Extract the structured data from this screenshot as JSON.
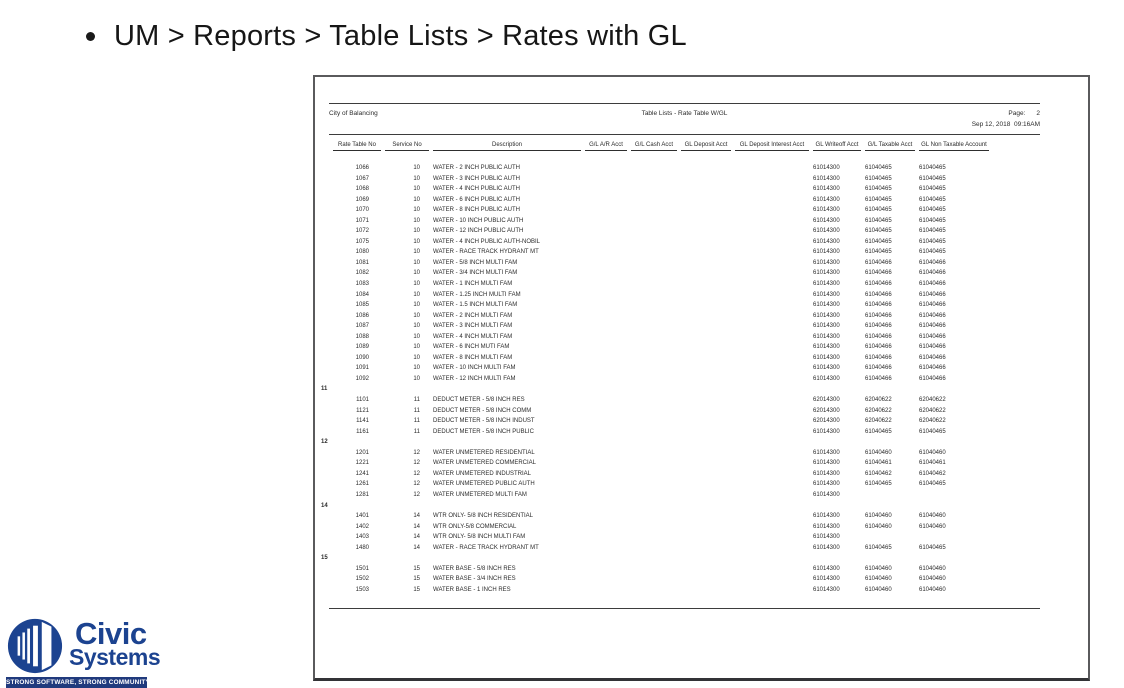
{
  "slide": {
    "title": "UM > Reports > Table Lists > Rates with GL"
  },
  "report": {
    "organization": "City of Balancing",
    "title": "Table Lists - Rate Table W/GL",
    "page_label": "Page:",
    "page_number": "2",
    "datetime": "Sep 12, 2018  09:16AM",
    "columns": [
      "Rate Table No",
      "Service No",
      "Description",
      "G/L A/R Acct",
      "G/L Cash Acct",
      "GL Deposit Acct",
      "GL Deposit Interest Acct",
      "GL Writeoff Acct",
      "G/L Taxable Acct",
      "GL Non Taxable Account"
    ],
    "groups": [
      {
        "label": "",
        "rows": [
          [
            "1066",
            "10",
            "WATER - 2 INCH PUBLIC AUTH",
            "",
            "",
            "",
            "",
            "61014300",
            "61040465",
            "61040465"
          ],
          [
            "1067",
            "10",
            "WATER - 3 INCH PUBLIC AUTH",
            "",
            "",
            "",
            "",
            "61014300",
            "61040465",
            "61040465"
          ],
          [
            "1068",
            "10",
            "WATER - 4 INCH PUBLIC AUTH",
            "",
            "",
            "",
            "",
            "61014300",
            "61040465",
            "61040465"
          ],
          [
            "1069",
            "10",
            "WATER - 6 INCH PUBLIC AUTH",
            "",
            "",
            "",
            "",
            "61014300",
            "61040465",
            "61040465"
          ],
          [
            "1070",
            "10",
            "WATER - 8 INCH PUBLIC AUTH",
            "",
            "",
            "",
            "",
            "61014300",
            "61040465",
            "61040465"
          ],
          [
            "1071",
            "10",
            "WATER - 10 INCH PUBLIC AUTH",
            "",
            "",
            "",
            "",
            "61014300",
            "61040465",
            "61040465"
          ],
          [
            "1072",
            "10",
            "WATER - 12 INCH PUBLIC AUTH",
            "",
            "",
            "",
            "",
            "61014300",
            "61040465",
            "61040465"
          ],
          [
            "1075",
            "10",
            "WATER - 4 INCH PUBLIC AUTH-NOBIL",
            "",
            "",
            "",
            "",
            "61014300",
            "61040465",
            "61040465"
          ],
          [
            "1080",
            "10",
            "WATER - RACE TRACK HYDRANT MT",
            "",
            "",
            "",
            "",
            "61014300",
            "61040465",
            "61040465"
          ],
          [
            "1081",
            "10",
            "WATER - 5/8 INCH MULTI FAM",
            "",
            "",
            "",
            "",
            "61014300",
            "61040466",
            "61040466"
          ],
          [
            "1082",
            "10",
            "WATER - 3/4 INCH MULTI FAM",
            "",
            "",
            "",
            "",
            "61014300",
            "61040466",
            "61040466"
          ],
          [
            "1083",
            "10",
            "WATER - 1 INCH MULTI FAM",
            "",
            "",
            "",
            "",
            "61014300",
            "61040466",
            "61040466"
          ],
          [
            "1084",
            "10",
            "WATER - 1.25 INCH MULTI FAM",
            "",
            "",
            "",
            "",
            "61014300",
            "61040466",
            "61040466"
          ],
          [
            "1085",
            "10",
            "WATER - 1.5 INCH MULTI FAM",
            "",
            "",
            "",
            "",
            "61014300",
            "61040466",
            "61040466"
          ],
          [
            "1086",
            "10",
            "WATER - 2 INCH MULTI FAM",
            "",
            "",
            "",
            "",
            "61014300",
            "61040466",
            "61040466"
          ],
          [
            "1087",
            "10",
            "WATER - 3 INCH MULTI FAM",
            "",
            "",
            "",
            "",
            "61014300",
            "61040466",
            "61040466"
          ],
          [
            "1088",
            "10",
            "WATER - 4 INCH MULTI FAM",
            "",
            "",
            "",
            "",
            "61014300",
            "61040466",
            "61040466"
          ],
          [
            "1089",
            "10",
            "WATER - 6 INCH MUTI FAM",
            "",
            "",
            "",
            "",
            "61014300",
            "61040466",
            "61040466"
          ],
          [
            "1090",
            "10",
            "WATER - 8 INCH MULTI FAM",
            "",
            "",
            "",
            "",
            "61014300",
            "61040466",
            "61040466"
          ],
          [
            "1091",
            "10",
            "WATER - 10 INCH MULTI FAM",
            "",
            "",
            "",
            "",
            "61014300",
            "61040466",
            "61040466"
          ],
          [
            "1092",
            "10",
            "WATER - 12 INCH MULTI FAM",
            "",
            "",
            "",
            "",
            "61014300",
            "61040466",
            "61040466"
          ]
        ]
      },
      {
        "label": "11",
        "rows": [
          [
            "1101",
            "11",
            "DEDUCT METER - 5/8 INCH RES",
            "",
            "",
            "",
            "",
            "62014300",
            "62040622",
            "62040622"
          ],
          [
            "1121",
            "11",
            "DEDUCT METER - 5/8 INCH COMM",
            "",
            "",
            "",
            "",
            "62014300",
            "62040622",
            "62040622"
          ],
          [
            "1141",
            "11",
            "DEDUCT METER - 5/8 INCH INDUST",
            "",
            "",
            "",
            "",
            "62014300",
            "62040622",
            "62040622"
          ],
          [
            "1161",
            "11",
            "DEDUCT METER - 5/8 INCH PUBLIC",
            "",
            "",
            "",
            "",
            "61014300",
            "61040465",
            "61040465"
          ]
        ]
      },
      {
        "label": "12",
        "rows": [
          [
            "1201",
            "12",
            "WATER UNMETERED RESIDENTIAL",
            "",
            "",
            "",
            "",
            "61014300",
            "61040460",
            "61040460"
          ],
          [
            "1221",
            "12",
            "WATER UNMETERED COMMERCIAL",
            "",
            "",
            "",
            "",
            "61014300",
            "61040461",
            "61040461"
          ],
          [
            "1241",
            "12",
            "WATER UNMETERED INDUSTRIAL",
            "",
            "",
            "",
            "",
            "61014300",
            "61040462",
            "61040462"
          ],
          [
            "1261",
            "12",
            "WATER UNMETERED PUBLIC AUTH",
            "",
            "",
            "",
            "",
            "61014300",
            "61040465",
            "61040465"
          ],
          [
            "1281",
            "12",
            "WATER UNMETERED MULTI FAM",
            "",
            "",
            "",
            "",
            "61014300",
            "",
            ""
          ]
        ]
      },
      {
        "label": "14",
        "rows": [
          [
            "1401",
            "14",
            "WTR ONLY- 5/8 INCH RESIDENTIAL",
            "",
            "",
            "",
            "",
            "61014300",
            "61040460",
            "61040460"
          ],
          [
            "1402",
            "14",
            "WTR ONLY-5/8 COMMERCIAL",
            "",
            "",
            "",
            "",
            "61014300",
            "61040460",
            "61040460"
          ],
          [
            "1403",
            "14",
            "WTR ONLY- 5/8 INCH MULTI FAM",
            "",
            "",
            "",
            "",
            "61014300",
            "",
            ""
          ],
          [
            "1480",
            "14",
            "WATER - RACE TRACK HYDRANT MT",
            "",
            "",
            "",
            "",
            "61014300",
            "61040465",
            "61040465"
          ]
        ]
      },
      {
        "label": "15",
        "rows": [
          [
            "1501",
            "15",
            "WATER BASE - 5/8 INCH RES",
            "",
            "",
            "",
            "",
            "61014300",
            "61040460",
            "61040460"
          ],
          [
            "1502",
            "15",
            "WATER BASE - 3/4 INCH RES",
            "",
            "",
            "",
            "",
            "61014300",
            "61040460",
            "61040460"
          ],
          [
            "1503",
            "15",
            "WATER BASE - 1 INCH RES",
            "",
            "",
            "",
            "",
            "61014300",
            "61040460",
            "61040460"
          ]
        ]
      }
    ]
  },
  "logo": {
    "name_line1": "Civic",
    "name_line2": "Systems",
    "tagline": "STRONG SOFTWARE, STRONG COMMUNITY",
    "brand_blue": "#1c4390",
    "banner_blue": "#203a7d"
  }
}
